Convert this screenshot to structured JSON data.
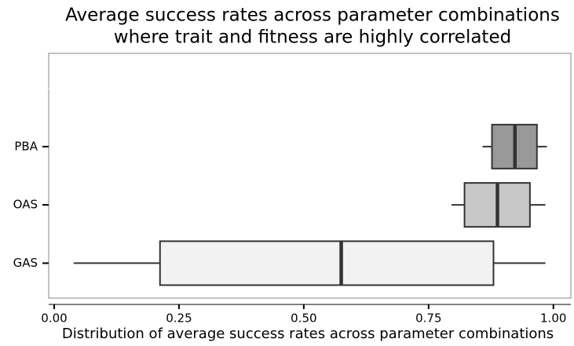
{
  "chart_data": {
    "type": "boxplot",
    "orientation": "horizontal",
    "title": [
      "Average success rates across parameter combinations",
      "where trait and fitness are highly correlated"
    ],
    "x_label": "Distribution of average success rates across parameter combinations",
    "categories": [
      null,
      "PBA",
      "OAS",
      "GAS"
    ],
    "boxes": [
      null,
      {
        "min": 0.858,
        "q1": 0.877,
        "median": 0.923,
        "q3": 0.967,
        "max": 0.987,
        "color": "#999999"
      },
      {
        "min": 0.796,
        "q1": 0.822,
        "median": 0.888,
        "q3": 0.953,
        "max": 0.984,
        "color": "#c8c8c8"
      },
      {
        "min": 0.039,
        "q1": 0.212,
        "median": 0.575,
        "q3": 0.88,
        "max": 0.984,
        "color": "#f2f2f2"
      }
    ],
    "xlim": [
      -0.011,
      1.035
    ],
    "xticks": [
      {
        "value": 0,
        "label": "0.00"
      },
      {
        "value": 0.25,
        "label": "0.25"
      },
      {
        "value": 0.5,
        "label": "0.50"
      },
      {
        "value": 0.75,
        "label": "0.75"
      },
      {
        "value": 1,
        "label": "1.00"
      }
    ],
    "grid": false
  }
}
